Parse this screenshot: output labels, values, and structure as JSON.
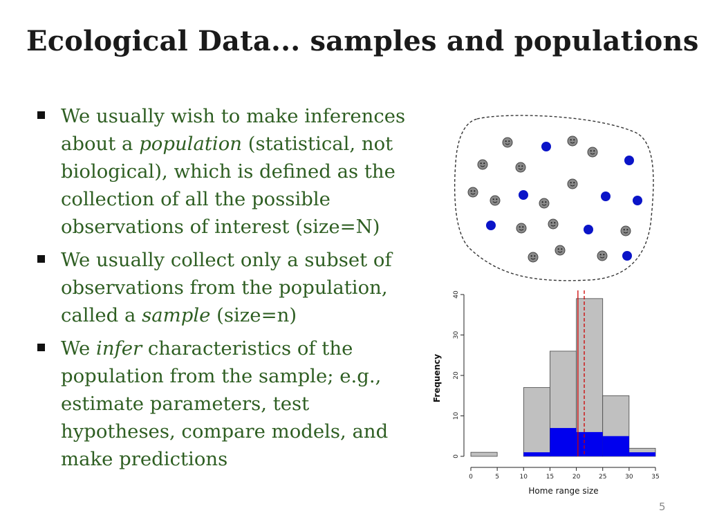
{
  "slide": {
    "title": "Ecological Data... samples and populations",
    "page_number": "5",
    "bullets": [
      {
        "parts": [
          {
            "text": "We usually wish to make inferences about a ",
            "italic": false
          },
          {
            "text": "population",
            "italic": true
          },
          {
            "text": " (statistical, not biological), which is defined as the collection of all the possible observations of interest (size=N)",
            "italic": false
          }
        ]
      },
      {
        "parts": [
          {
            "text": "We usually collect only a subset of observations from the population, called a ",
            "italic": false
          },
          {
            "text": "sample",
            "italic": true
          },
          {
            "text": " (size=n)",
            "italic": false
          }
        ]
      },
      {
        "parts": [
          {
            "text": "We ",
            "italic": false
          },
          {
            "text": "infer",
            "italic": true
          },
          {
            "text": " characteristics of the population from the sample; e.g., estimate parameters, test hypotheses, compare models, and make predictions",
            "italic": false
          }
        ]
      }
    ],
    "colors": {
      "bullet_text": "#2e5e22",
      "sample_blue": "#0a14c8",
      "individual_grey": "#8a8a8a"
    },
    "population_diagram": {
      "individual_icon": "smiley-face-icon",
      "population_count": 26,
      "sample_count": 10
    }
  },
  "chart_data": {
    "type": "bar",
    "xlabel": "Home range size",
    "ylabel": "Frequency",
    "xlim": [
      0,
      35
    ],
    "ylim": [
      0,
      40
    ],
    "x_ticks": [
      "0",
      "5",
      "10",
      "15",
      "20",
      "25",
      "30",
      "35"
    ],
    "y_ticks": [
      "0",
      "10",
      "20",
      "30",
      "40"
    ],
    "bins": [
      [
        0,
        5
      ],
      [
        5,
        10
      ],
      [
        10,
        15
      ],
      [
        15,
        20
      ],
      [
        20,
        25
      ],
      [
        25,
        30
      ],
      [
        30,
        35
      ]
    ],
    "series": [
      {
        "values": [
          1,
          0,
          17,
          26,
          39,
          15,
          2
        ],
        "color": "#c0c0c0"
      },
      {
        "values": [
          0,
          0,
          1,
          7,
          6,
          5,
          1
        ],
        "color": "#0000ee"
      }
    ],
    "reference_lines": [
      {
        "x": 20.3,
        "color": "#cc0000",
        "style": "solid"
      },
      {
        "x": 21.5,
        "color": "#cc0000",
        "style": "dashed"
      }
    ],
    "grid": false
  }
}
